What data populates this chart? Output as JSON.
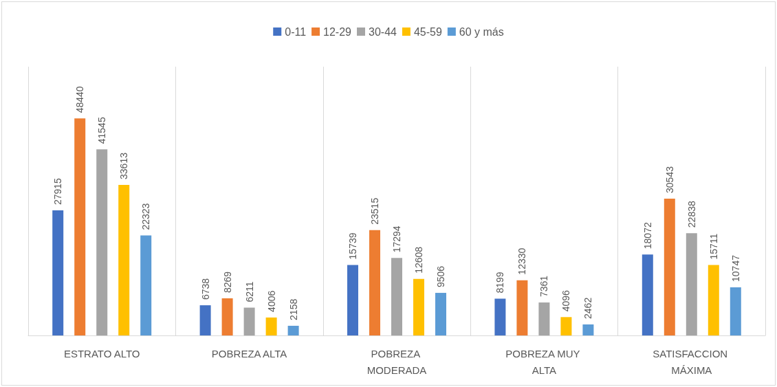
{
  "chart_data": {
    "type": "bar",
    "categories": [
      "ESTRATO ALTO",
      "POBREZA ALTA",
      "POBREZA MODERADA",
      "POBREZA MUY ALTA",
      "SATISFACCION MÁXIMA"
    ],
    "series": [
      {
        "name": "0-11",
        "color": "#4472c4",
        "values": [
          27915,
          6738,
          15739,
          8199,
          18072
        ]
      },
      {
        "name": "12-29",
        "color": "#ed7d31",
        "values": [
          48440,
          8269,
          23515,
          12330,
          30543
        ]
      },
      {
        "name": "30-44",
        "color": "#a5a5a5",
        "values": [
          41545,
          6211,
          17294,
          7361,
          22838
        ]
      },
      {
        "name": "45-59",
        "color": "#ffc000",
        "values": [
          33613,
          4006,
          12608,
          4096,
          15711
        ]
      },
      {
        "name": "60 y más",
        "color": "#5b9bd5",
        "values": [
          22323,
          2158,
          9506,
          2462,
          10747
        ]
      }
    ],
    "ylim": [
      0,
      60000
    ],
    "tick_labels": "x",
    "data_labels": true,
    "grid": "x",
    "legend": "top"
  }
}
